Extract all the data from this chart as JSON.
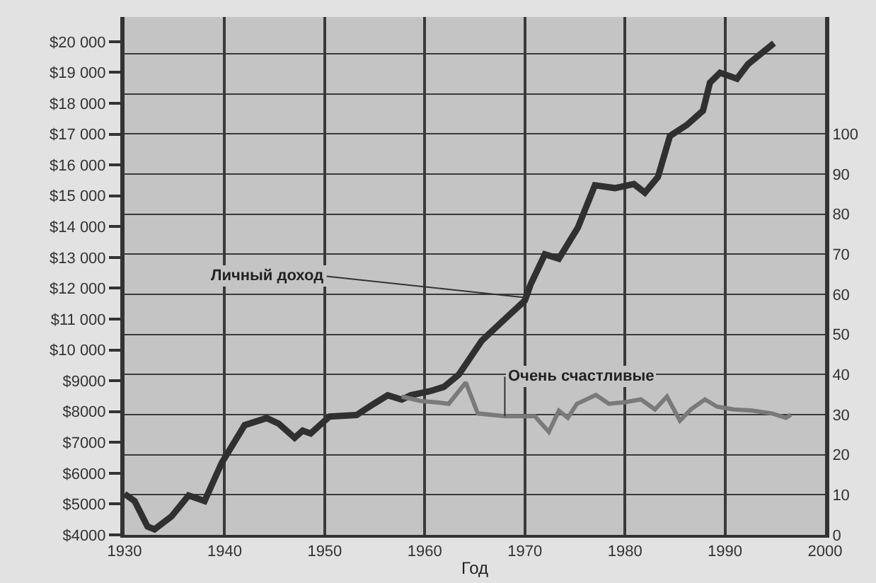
{
  "chart_data": {
    "type": "line",
    "xlabel": "Год",
    "xlim": [
      1930,
      2000
    ],
    "xticks": [
      1930,
      1940,
      1950,
      1960,
      1970,
      1980,
      1990,
      2000
    ],
    "ylim": [
      4000,
      20800
    ],
    "yticks": [
      {
        "value": 4000,
        "label": "$4000"
      },
      {
        "value": 5000,
        "label": "$5000"
      },
      {
        "value": 6000,
        "label": "$6000"
      },
      {
        "value": 7000,
        "label": "$7000"
      },
      {
        "value": 8000,
        "label": "$8000"
      },
      {
        "value": 9000,
        "label": "$9000"
      },
      {
        "value": 10000,
        "label": "$10 000"
      },
      {
        "value": 11000,
        "label": "$11 000"
      },
      {
        "value": 12000,
        "label": "$12 000"
      },
      {
        "value": 13000,
        "label": "$13 000"
      },
      {
        "value": 14000,
        "label": "$14 000"
      },
      {
        "value": 15000,
        "label": "$15 000"
      },
      {
        "value": 16000,
        "label": "$16 000"
      },
      {
        "value": 17000,
        "label": "$17 000"
      },
      {
        "value": 18000,
        "label": "$18 000"
      },
      {
        "value": 19000,
        "label": "$19 000"
      },
      {
        "value": 20000,
        "label": "$20 000"
      }
    ],
    "y2lim": [
      0,
      129.2
    ],
    "y2ticks": [
      0,
      10,
      20,
      30,
      40,
      50,
      60,
      70,
      80,
      90,
      100,
      {
        "value": 110,
        "label": null
      },
      {
        "value": 120,
        "label": null
      }
    ],
    "grid": true,
    "marker": "none",
    "line_style": "solid",
    "series": [
      {
        "color": "#303030",
        "x": [
          1930,
          1931,
          1932.3,
          1933,
          1934.7,
          1936.4,
          1938,
          1939.7,
          1942,
          1944.2,
          1945.4,
          1947,
          1947.8,
          1948.6,
          1950,
          1950.5,
          1953.2,
          1954.9,
          1956.3,
          1957.7,
          1958.6,
          1960.5,
          1961.9,
          1963.4,
          1965.7,
          1968,
          1970,
          1970.6,
          1972,
          1973.4,
          1975.3,
          1977,
          1979,
          1980.9,
          1982,
          1983.3,
          1984.5,
          1986.2,
          1987.8,
          1988.5,
          1989.5,
          1991.2,
          1992.3,
          1994.9
        ],
        "values": [
          5330,
          5100,
          4270,
          4180,
          4600,
          5280,
          5100,
          6330,
          7560,
          7790,
          7610,
          7150,
          7380,
          7290,
          7700,
          7840,
          7890,
          8250,
          8530,
          8390,
          8530,
          8660,
          8800,
          9200,
          10300,
          11000,
          11600,
          12140,
          13100,
          12960,
          13970,
          15340,
          15250,
          15380,
          15100,
          15610,
          16940,
          17300,
          17760,
          18670,
          18990,
          18800,
          19270,
          19950
        ]
      },
      {
        "color": "#7a7a7a",
        "axis": "y2",
        "x": [
          1957.7,
          1959.6,
          1961.4,
          1962.4,
          1964.1,
          1965.3,
          1968,
          1971,
          1972.4,
          1973.4,
          1974.3,
          1975.2,
          1977.1,
          1978.4,
          1980,
          1981.6,
          1983,
          1984.2,
          1985.5,
          1986.6,
          1988,
          1989.2,
          1990.9,
          1992.7,
          1994.7,
          1996.1,
          1996.6
        ],
        "values": [
          34.5,
          33.4,
          33,
          32.7,
          38,
          30.3,
          29.6,
          29.6,
          25.7,
          31,
          29.2,
          32.7,
          34.9,
          32.7,
          33.1,
          33.8,
          31.3,
          34.5,
          28.5,
          31.3,
          33.8,
          32,
          31.3,
          31,
          30.3,
          29.2,
          30
        ]
      }
    ],
    "annotations": [
      {
        "text": "Личный доход",
        "x": 1970,
        "y": 11700
      },
      {
        "text": "Очень счастливые",
        "x": 1968,
        "y": 7850
      }
    ]
  }
}
